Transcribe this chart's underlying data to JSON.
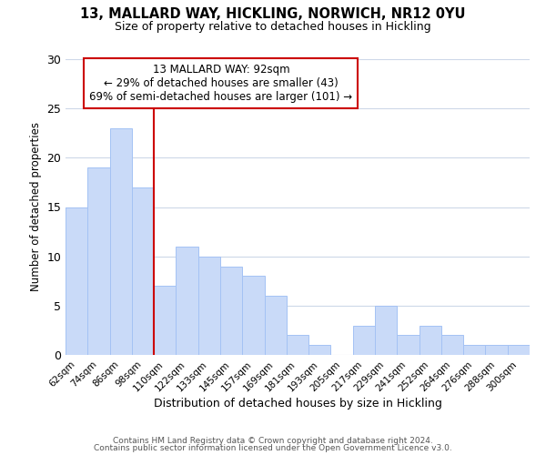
{
  "title": "13, MALLARD WAY, HICKLING, NORWICH, NR12 0YU",
  "subtitle": "Size of property relative to detached houses in Hickling",
  "xlabel": "Distribution of detached houses by size in Hickling",
  "ylabel": "Number of detached properties",
  "bar_labels": [
    "62sqm",
    "74sqm",
    "86sqm",
    "98sqm",
    "110sqm",
    "122sqm",
    "133sqm",
    "145sqm",
    "157sqm",
    "169sqm",
    "181sqm",
    "193sqm",
    "205sqm",
    "217sqm",
    "229sqm",
    "241sqm",
    "252sqm",
    "264sqm",
    "276sqm",
    "288sqm",
    "300sqm"
  ],
  "bar_values": [
    15,
    19,
    23,
    17,
    7,
    11,
    10,
    9,
    8,
    6,
    2,
    1,
    0,
    3,
    5,
    2,
    3,
    2,
    1,
    1,
    1
  ],
  "bar_color": "#c9daf8",
  "bar_edge_color": "#a4c2f4",
  "vline_color": "#cc0000",
  "annotation_text": "13 MALLARD WAY: 92sqm\n← 29% of detached houses are smaller (43)\n69% of semi-detached houses are larger (101) →",
  "annotation_box_color": "#ffffff",
  "annotation_box_edge": "#cc0000",
  "ylim": [
    0,
    30
  ],
  "yticks": [
    0,
    5,
    10,
    15,
    20,
    25,
    30
  ],
  "footer_line1": "Contains HM Land Registry data © Crown copyright and database right 2024.",
  "footer_line2": "Contains public sector information licensed under the Open Government Licence v3.0.",
  "background_color": "#ffffff",
  "grid_color": "#cdd8e8"
}
